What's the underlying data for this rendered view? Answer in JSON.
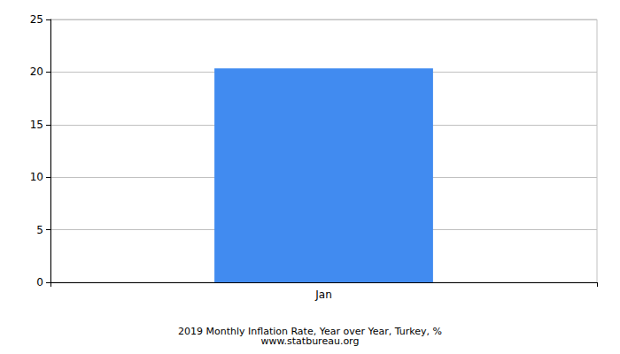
{
  "chart_data": {
    "type": "bar",
    "title": "2019 Monthly Inflation Rate, Year over Year, Turkey, %",
    "subtitle": "www.statbureau.org",
    "categories": [
      "Jan"
    ],
    "values": [
      20.35
    ],
    "color": "#418bf0",
    "ylim": [
      0,
      25
    ],
    "yticks": [
      0,
      5,
      10,
      15,
      20,
      25
    ],
    "grid": true
  }
}
